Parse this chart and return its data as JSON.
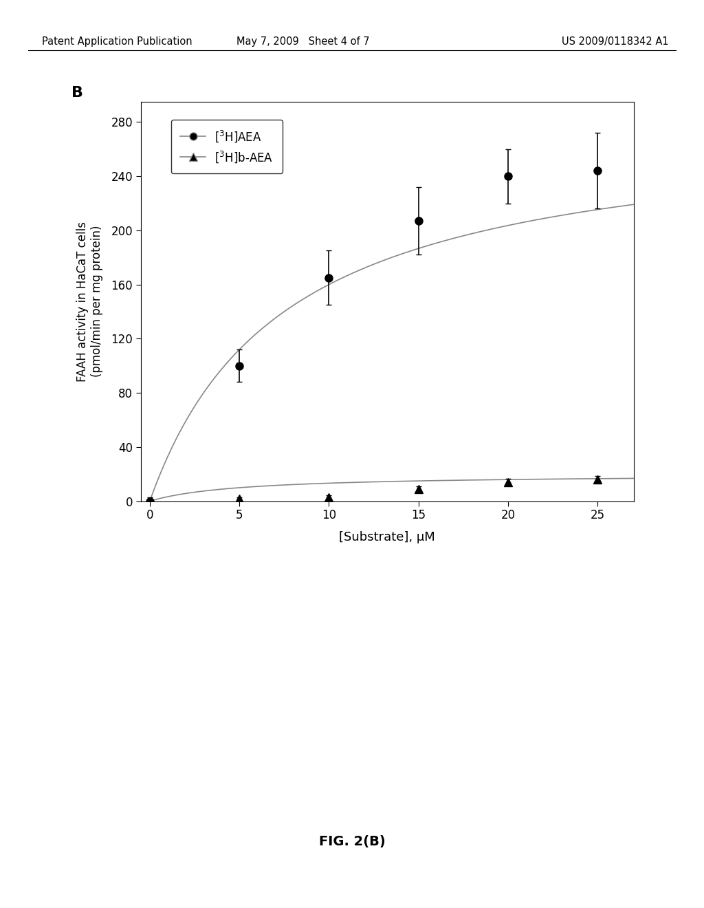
{
  "xlabel": "[Substrate], μM",
  "ylabel": "FAAH activity in HaCaT cells\n(pmol/min per mg protein)",
  "xlim": [
    -0.5,
    27
  ],
  "ylim": [
    0,
    295
  ],
  "xticks": [
    0,
    5,
    10,
    15,
    20,
    25
  ],
  "yticks": [
    0,
    40,
    80,
    120,
    160,
    200,
    240,
    280
  ],
  "series1_x": [
    0,
    5,
    10,
    15,
    20,
    25
  ],
  "series1_y": [
    0,
    100,
    165,
    207,
    240,
    244
  ],
  "series1_yerr": [
    3,
    12,
    20,
    25,
    20,
    28
  ],
  "series2_x": [
    0,
    5,
    10,
    15,
    20,
    25
  ],
  "series2_y": [
    0,
    2,
    3,
    9,
    14,
    16
  ],
  "series2_yerr": [
    0.5,
    1.0,
    1.5,
    2.0,
    2.5,
    2.5
  ],
  "mm_vmax1": 280,
  "mm_km1": 7.5,
  "mm_vmax2": 20,
  "mm_km2": 5,
  "background_color": "#ffffff",
  "plot_bg_color": "#ffffff",
  "curve_color": "#888888",
  "marker_color": "#000000",
  "fig_caption": "FIG. 2(B)",
  "header_left": "Patent Application Publication",
  "header_center": "May 7, 2009   Sheet 4 of 7",
  "header_right": "US 2009/0118342 A1"
}
